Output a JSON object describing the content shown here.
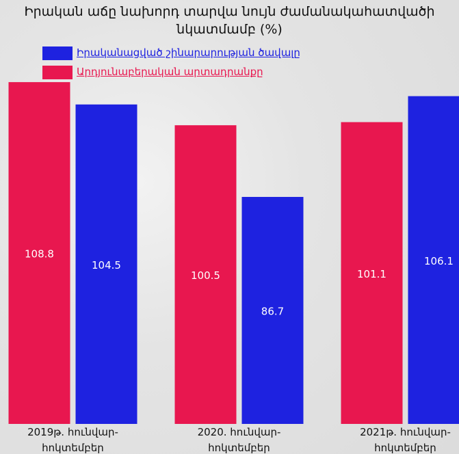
{
  "chart_data": {
    "type": "bar",
    "title": "Իրական աճը նախորդ տարվա նույն ժամանակահատվածի նկատմամբ (%)",
    "categories": [
      "2019թ. հունվար-հոկտեմբեր",
      "2020. հունվար-հոկտեմբեր",
      "2021թ. հունվար-հոկտեմբեր"
    ],
    "series": [
      {
        "name": "Արդյունաբերական արտադրանքը",
        "color": "#e8174f",
        "values": [
          108.8,
          100.5,
          101.1
        ]
      },
      {
        "name": "Իրականացված շինարարության ծավալը",
        "color": "#1e22e0",
        "values": [
          104.5,
          86.7,
          106.1
        ]
      }
    ],
    "ylim": [
      43,
      110
    ]
  }
}
